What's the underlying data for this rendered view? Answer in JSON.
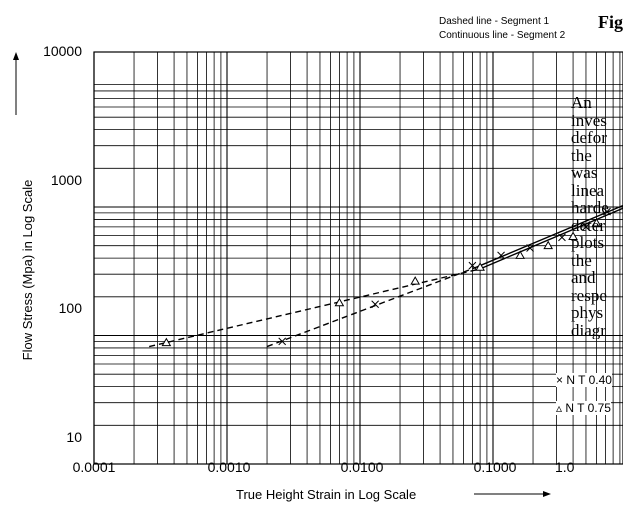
{
  "figure": {
    "label": "Fig.",
    "notes": [
      "Dashed line - Segment 1",
      "Continuous line - Segment 2"
    ]
  },
  "chart_data": {
    "type": "scatter",
    "xlabel": "True Height Strain in Log Scale",
    "ylabel": "Flow Stress (Mpa) in Log Scale",
    "x_scale": "log",
    "y_scale": "log",
    "xlim": [
      0.0001,
      1.0
    ],
    "ylim": [
      10,
      10000
    ],
    "x_ticks": [
      "0.0001",
      "0.0010",
      "0.0100",
      "0.1000",
      "1.0"
    ],
    "y_ticks": [
      "10",
      "100",
      "1000",
      "10000"
    ],
    "grid": true,
    "legend_position": "bottom-right",
    "series": [
      {
        "name": "N T 0.40",
        "marker": "x",
        "points": [
          [
            0.0026,
            90
          ],
          [
            0.013,
            175
          ],
          [
            0.07,
            350
          ],
          [
            0.115,
            420
          ],
          [
            0.19,
            480
          ],
          [
            0.33,
            580
          ],
          [
            0.5,
            700
          ],
          [
            0.72,
            920
          ]
        ],
        "lines": [
          {
            "style": "dashed",
            "segment": 1,
            "from": [
              0.002,
              82
            ],
            "to": [
              0.075,
              340
            ]
          },
          {
            "style": "continuous",
            "segment": 2,
            "from": [
              0.075,
              340
            ],
            "to": [
              1.0,
              1050
            ]
          }
        ]
      },
      {
        "name": "N T 0.75",
        "marker": "triangle",
        "points": [
          [
            0.00035,
            88
          ],
          [
            0.007,
            180
          ],
          [
            0.026,
            265
          ],
          [
            0.08,
            340
          ],
          [
            0.16,
            420
          ],
          [
            0.26,
            500
          ],
          [
            0.4,
            590
          ],
          [
            0.6,
            750
          ]
        ],
        "lines": [
          {
            "style": "dashed",
            "segment": 1,
            "from": [
              0.00026,
              82
            ],
            "to": [
              0.08,
              330
            ]
          },
          {
            "style": "continuous",
            "segment": 2,
            "from": [
              0.08,
              330
            ],
            "to": [
              1.0,
              1000
            ]
          }
        ]
      }
    ]
  },
  "side_text": {
    "lines": [
      "An",
      "inves",
      "defor",
      "the",
      "was",
      "linea",
      "harde",
      "deter",
      "plots",
      "the",
      "and",
      "respe",
      "phys",
      "diagr"
    ]
  }
}
